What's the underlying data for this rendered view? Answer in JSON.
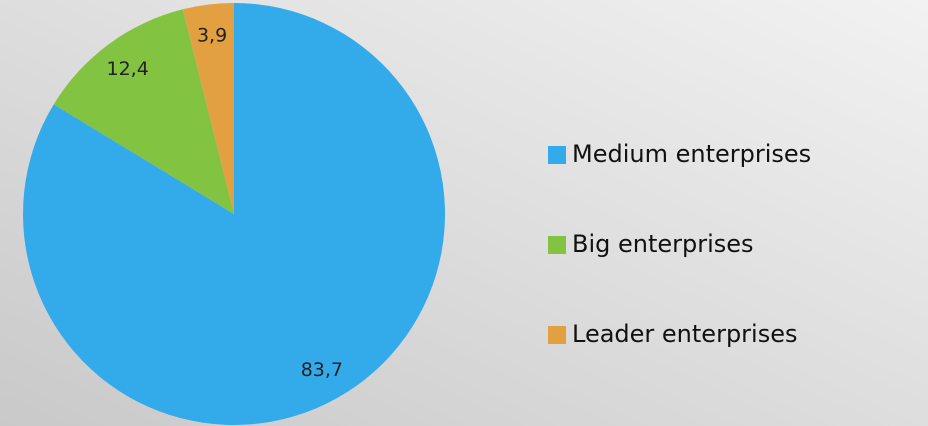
{
  "chart_data": {
    "type": "pie",
    "categories": [
      "Medium enterprises",
      "Big enterprises",
      "Leader enterprises"
    ],
    "values": [
      83.7,
      12.4,
      3.9
    ],
    "value_labels": [
      "83,7",
      "12,4",
      "3,9"
    ],
    "colors": [
      "#33aaea",
      "#82c341",
      "#e3a040"
    ],
    "legend": "right"
  }
}
